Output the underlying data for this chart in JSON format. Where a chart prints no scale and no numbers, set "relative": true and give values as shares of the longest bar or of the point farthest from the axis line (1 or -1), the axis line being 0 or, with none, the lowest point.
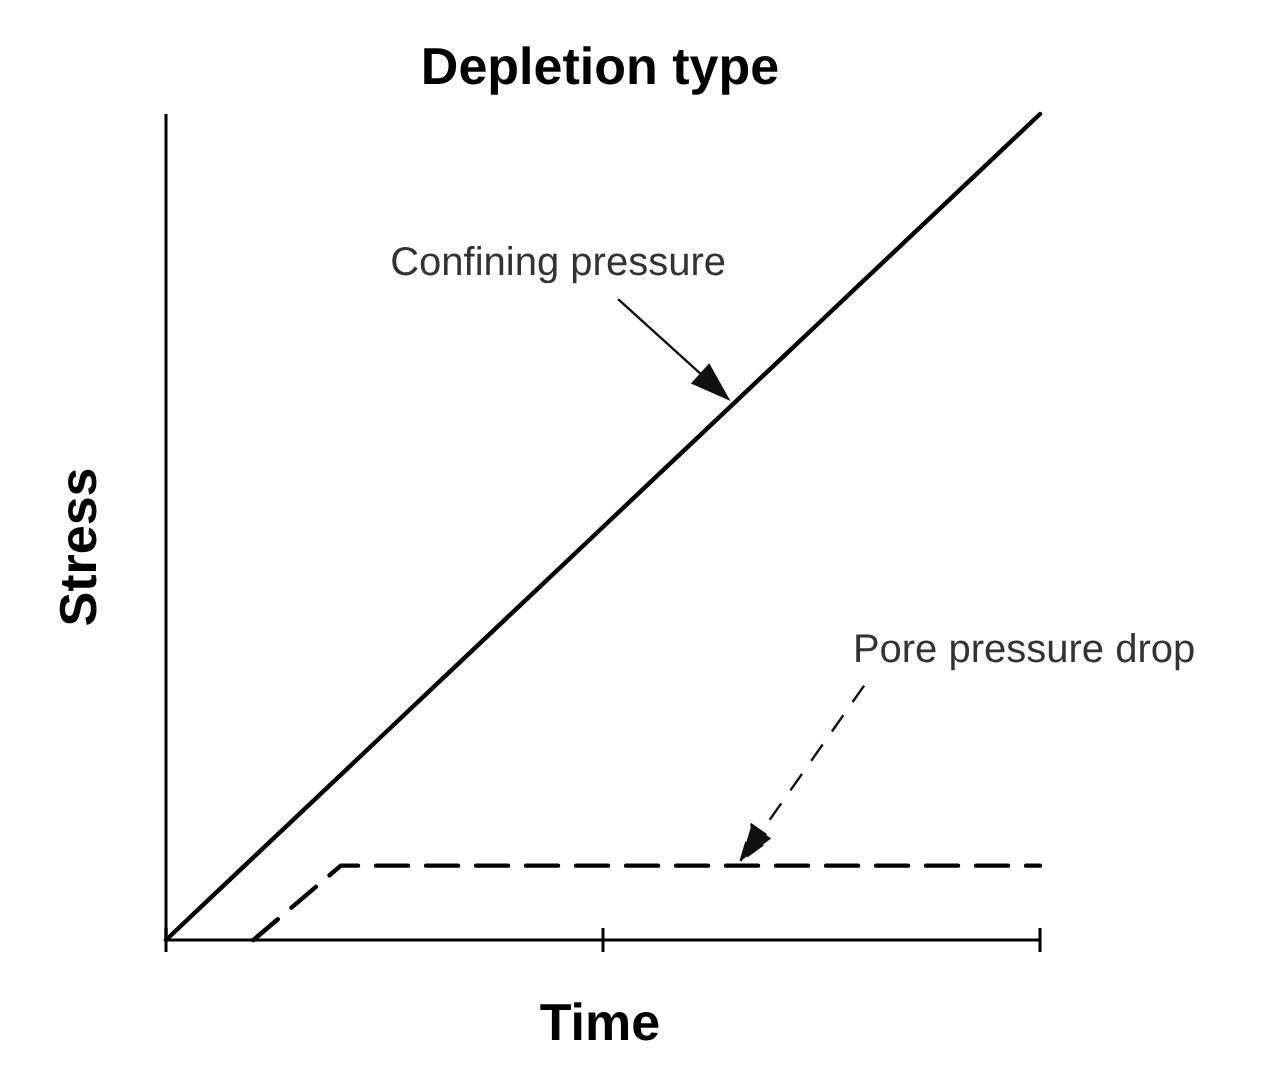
{
  "chart_data": {
    "type": "line",
    "title": "Depletion type",
    "xlabel": "Time",
    "ylabel": "Stress",
    "relative": true,
    "categories": [
      null,
      null,
      null,
      null,
      null,
      null,
      null,
      null,
      null,
      null,
      null,
      null,
      null,
      null,
      null,
      null,
      null,
      null,
      null,
      null,
      null
    ],
    "series": [
      {
        "color": "#000000",
        "line_style": "solid",
        "values": [
          0,
          0.05,
          0.1,
          0.15,
          0.2,
          0.25,
          0.3,
          0.35,
          0.4,
          0.45,
          0.5,
          0.55,
          0.6,
          0.65,
          0.7,
          0.75,
          0.8,
          0.85,
          0.9,
          0.95,
          1
        ]
      },
      {
        "color": "#000000",
        "line_style": "dashed",
        "values": [
          null,
          null,
          0,
          0.045,
          0.09,
          0.09,
          0.09,
          0.09,
          0.09,
          0.09,
          0.09,
          0.09,
          0.09,
          0.09,
          0.09,
          0.09,
          0.09,
          0.09,
          0.09,
          0.09,
          0.09
        ]
      }
    ],
    "annotations": [
      "Confining pressure",
      "Pore pressure drop"
    ]
  }
}
